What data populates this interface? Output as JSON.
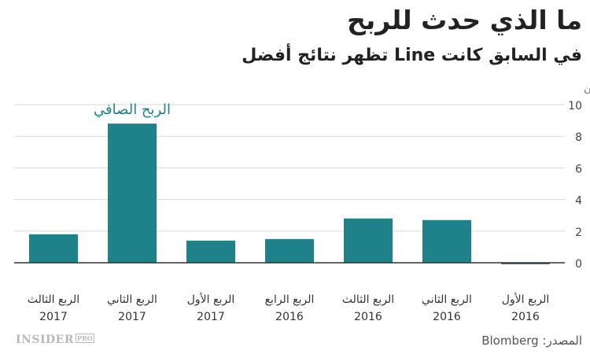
{
  "header": {
    "title": "ما الذي حدث للربح",
    "subtitle": "في السابق كانت Line تظهر نتائج أفضل"
  },
  "chart_data": {
    "type": "bar",
    "categories": [
      [
        "الربع الثالث",
        "2017"
      ],
      [
        "الربع الثاني",
        "2017"
      ],
      [
        "الربع الأول",
        "2017"
      ],
      [
        "الربع الرابع",
        "2016"
      ],
      [
        "الربع الثالث",
        "2016"
      ],
      [
        "الربع الثاني",
        "2016"
      ],
      [
        "الربع الأول",
        "2016"
      ]
    ],
    "values": [
      1.8,
      8.8,
      1.4,
      1.5,
      2.8,
      2.7,
      -0.1
    ],
    "ylabel": "الين",
    "ylim": [
      0,
      10
    ],
    "yticks": [
      0,
      2,
      4,
      6,
      8,
      10
    ],
    "series_label": "الربح الصافي",
    "grid": true,
    "axis_side": "right",
    "colors": {
      "bar": "#1f8189",
      "annotation": "#1f8189",
      "grid": "#d8d8d8"
    }
  },
  "footer": {
    "logo_text": "INSIDER",
    "logo_badge": "PRO",
    "source": "المصدر: Blomberg"
  }
}
